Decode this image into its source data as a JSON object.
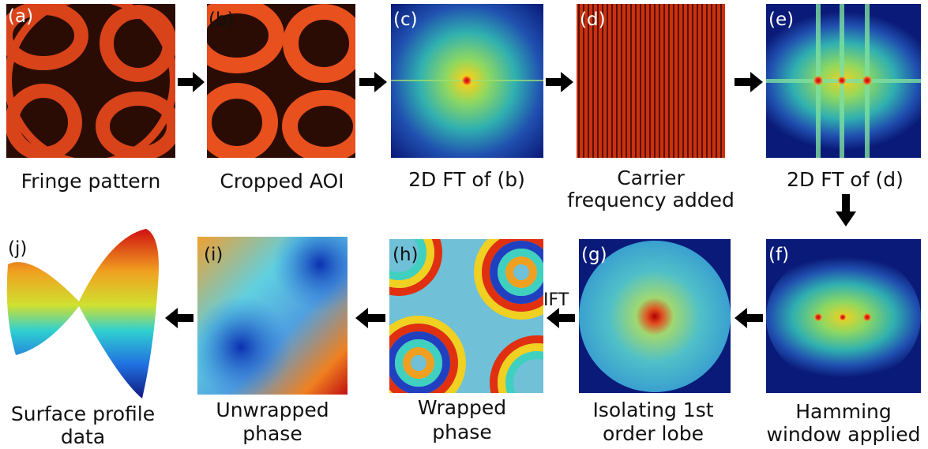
{
  "panels": [
    {
      "label": "(a)",
      "caption": [
        "Fringe pattern"
      ]
    },
    {
      "label": "(b)",
      "caption": [
        "Cropped AOI"
      ]
    },
    {
      "label": "(c)",
      "caption": [
        "2D FT of (b)"
      ]
    },
    {
      "label": "(d)",
      "caption": [
        "Carrier",
        "frequency added"
      ]
    },
    {
      "label": "(e)",
      "caption": [
        "2D FT of (d)"
      ]
    },
    {
      "label": "(f)",
      "caption": [
        "Hamming",
        "window applied"
      ]
    },
    {
      "label": "(g)",
      "caption": [
        "Isolating 1st",
        "order lobe"
      ]
    },
    {
      "label": "(h)",
      "caption": [
        "Wrapped",
        "phase"
      ]
    },
    {
      "label": "(i)",
      "caption": [
        "Unwrapped",
        "phase"
      ]
    },
    {
      "label": "(j)",
      "caption": [
        "Surface profile",
        "data"
      ]
    }
  ],
  "ift_label": "IFT"
}
